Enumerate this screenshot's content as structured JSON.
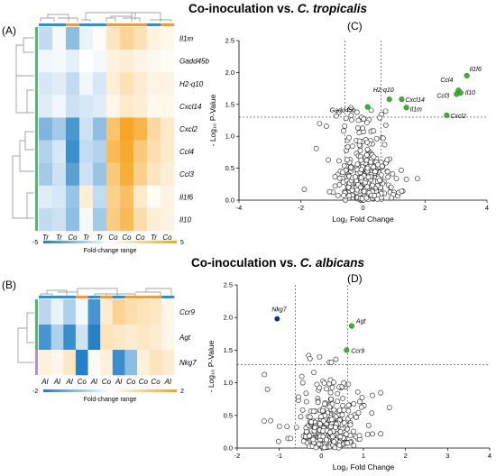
{
  "titles": {
    "top": {
      "prefix": "Co-inoculation vs. ",
      "species": "C. tropicalis"
    },
    "bottom": {
      "prefix": "Co-inoculation vs. ",
      "species": "C. albicans"
    }
  },
  "panels": {
    "A": "(A)",
    "B": "(B)",
    "C": "(C)",
    "D": "(D)"
  },
  "heatmap_A": {
    "genes": [
      "Il1m",
      "Gadd45b",
      "H2-q10",
      "Cxcl14",
      "Cxcl2",
      "Ccl4",
      "Ccl3",
      "Il1f6",
      "Il10"
    ],
    "columns": [
      "Tr",
      "Tr",
      "Co",
      "Tr",
      "Tr",
      "Co",
      "Co",
      "Co",
      "Tr",
      "Co"
    ],
    "values": [
      [
        -1.2,
        -0.2,
        -2.2,
        -0.4,
        0.2,
        1.2,
        2.0,
        1.4,
        0.6,
        0.4
      ],
      [
        -0.3,
        -0.2,
        -0.5,
        0.0,
        -0.2,
        0.6,
        0.8,
        0.5,
        0.3,
        0.2
      ],
      [
        -0.8,
        -0.6,
        -1.2,
        -0.3,
        -0.8,
        0.8,
        1.4,
        0.9,
        0.5,
        0.6
      ],
      [
        -0.6,
        -0.3,
        -1.0,
        -0.8,
        -0.6,
        0.4,
        1.0,
        0.8,
        0.3,
        0.4
      ],
      [
        -2.5,
        -1.8,
        -3.5,
        -1.0,
        -2.2,
        2.8,
        4.2,
        3.5,
        1.8,
        1.0
      ],
      [
        -1.5,
        -0.8,
        -3.8,
        -1.2,
        -1.5,
        3.2,
        4.0,
        2.5,
        1.5,
        1.0
      ],
      [
        -1.8,
        -1.0,
        -3.2,
        -1.0,
        -2.0,
        2.5,
        3.8,
        2.2,
        1.2,
        0.8
      ],
      [
        -0.6,
        -0.8,
        -2.0,
        0.8,
        -1.2,
        2.2,
        3.0,
        1.0,
        0.2,
        0.5
      ],
      [
        -1.2,
        -1.0,
        -2.2,
        -0.2,
        -1.8,
        2.4,
        3.2,
        1.6,
        0.8,
        0.6
      ]
    ],
    "range": {
      "min": "-5",
      "max": "5",
      "label": "Fold-change range"
    }
  },
  "heatmap_B": {
    "genes": [
      "Ccr9",
      "Agt",
      "Nkg7"
    ],
    "columns": [
      "Al",
      "Al",
      "Al",
      "Co",
      "Al",
      "Co",
      "Al",
      "Co",
      "Co",
      "Co",
      "Al"
    ],
    "values": [
      [
        -0.6,
        -0.2,
        -0.7,
        -0.1,
        -1.6,
        0.4,
        0.9,
        0.7,
        0.6,
        0.5,
        0.2
      ],
      [
        -1.6,
        -0.7,
        -1.7,
        -0.4,
        -1.9,
        0.6,
        0.5,
        0.4,
        0.5,
        0.4,
        0.2
      ],
      [
        0.3,
        0.2,
        0.5,
        -1.9,
        0.1,
        0.3,
        -1.7,
        -1.0,
        0.3,
        0.6,
        0.4
      ]
    ],
    "range": {
      "min": "-2",
      "max": "2",
      "label": "Fold-change range"
    }
  },
  "chart_data": [
    {
      "type": "scatter",
      "panel": "C",
      "xlabel": "Log₂ Fold Change",
      "ylabel": "- Log₁₀ P-Value",
      "xlim": [
        -4,
        4
      ],
      "ylim": [
        0,
        2.5
      ],
      "xticks": [
        "-4",
        "-2",
        "0",
        "2",
        "4"
      ],
      "yticks": [
        "0.0",
        "0.5",
        "1.0",
        "1.5",
        "2.0",
        "2.5"
      ],
      "threshold_y": 1.3,
      "threshold_x": [
        -0.58,
        0.58
      ],
      "highlighted": [
        {
          "label": "Il1f6",
          "x": 3.35,
          "y": 1.95
        },
        {
          "label": "Ccl4",
          "x": 3.08,
          "y": 1.72
        },
        {
          "label": "Ccl3",
          "x": 3.02,
          "y": 1.66
        },
        {
          "label": "Il10",
          "x": 3.15,
          "y": 1.68
        },
        {
          "label": "Cxcl2",
          "x": 2.7,
          "y": 1.33
        },
        {
          "label": "H2-q10",
          "x": 0.85,
          "y": 1.58
        },
        {
          "label": "Cxcl14",
          "x": 1.25,
          "y": 1.58
        },
        {
          "label": "Il1m",
          "x": 1.4,
          "y": 1.45
        },
        {
          "label": "Gadd45b",
          "x": 0.15,
          "y": 1.46
        }
      ]
    },
    {
      "type": "scatter",
      "panel": "D",
      "xlabel": "Log₂ Fold Change",
      "ylabel": "- Log₁₀ P-Value",
      "xlim": [
        -2,
        4
      ],
      "ylim": [
        0,
        2.5
      ],
      "xticks": [
        "-2",
        "-1",
        "0",
        "1",
        "2",
        "3",
        "4"
      ],
      "yticks": [
        "0.0",
        "0.5",
        "1.0",
        "1.5",
        "2.0",
        "2.5"
      ],
      "threshold_y": 1.28,
      "threshold_x": [
        -0.62,
        0.62
      ],
      "highlighted": [
        {
          "label": "Nkg7",
          "x": -1.05,
          "y": 1.98,
          "color": "#1f2a8c"
        },
        {
          "label": "Agt",
          "x": 0.72,
          "y": 1.87,
          "color": "#3cb32c"
        },
        {
          "label": "Ccr9",
          "x": 0.6,
          "y": 1.5,
          "color": "#3cb32c"
        }
      ]
    }
  ]
}
